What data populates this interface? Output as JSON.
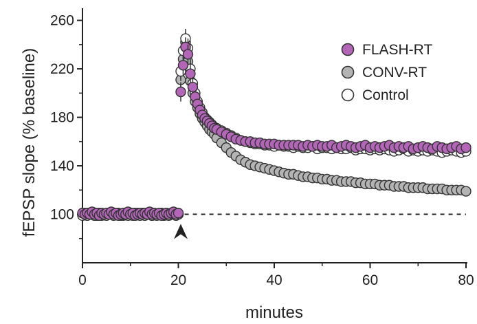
{
  "chart_data": {
    "type": "scatter",
    "title": "",
    "xlabel": "minutes",
    "ylabel": "fEPSP slope (% baseline)",
    "xlim": [
      0,
      80
    ],
    "ylim": [
      60,
      270
    ],
    "xticks": [
      0,
      20,
      40,
      60,
      80
    ],
    "yticks": [
      100,
      140,
      180,
      220,
      260
    ],
    "grid": false,
    "legend_position": "top-right",
    "baseline_ref": 100,
    "stimulus_marker_x": 20.5,
    "series": [
      {
        "name": "FLASH-RT",
        "color": "#b365b8",
        "points": [
          [
            0,
            101
          ],
          [
            0.5,
            100
          ],
          [
            1,
            101
          ],
          [
            1.5,
            100
          ],
          [
            2,
            102
          ],
          [
            2.5,
            100
          ],
          [
            3,
            101
          ],
          [
            3.5,
            99
          ],
          [
            4,
            101
          ],
          [
            4.5,
            100
          ],
          [
            5,
            101
          ],
          [
            5.5,
            100
          ],
          [
            6,
            102
          ],
          [
            6.5,
            100
          ],
          [
            7,
            101
          ],
          [
            7.5,
            99
          ],
          [
            8,
            100
          ],
          [
            8.5,
            101
          ],
          [
            9,
            100
          ],
          [
            9.5,
            102
          ],
          [
            10,
            100
          ],
          [
            10.5,
            101
          ],
          [
            11,
            99
          ],
          [
            11.5,
            100
          ],
          [
            12,
            101
          ],
          [
            12.5,
            100
          ],
          [
            13,
            101
          ],
          [
            13.5,
            100
          ],
          [
            14,
            102
          ],
          [
            14.5,
            100
          ],
          [
            15,
            101
          ],
          [
            15.5,
            100
          ],
          [
            16,
            101
          ],
          [
            16.5,
            99
          ],
          [
            17,
            100
          ],
          [
            17.5,
            101
          ],
          [
            18,
            100
          ],
          [
            18.5,
            101
          ],
          [
            19,
            102
          ],
          [
            19.5,
            100
          ],
          [
            20,
            101
          ],
          [
            20.5,
            201
          ],
          [
            21,
            223
          ],
          [
            21.5,
            238
          ],
          [
            22,
            232
          ],
          [
            22.5,
            216
          ],
          [
            23,
            205
          ],
          [
            23.5,
            197
          ],
          [
            24,
            191
          ],
          [
            24.5,
            186
          ],
          [
            25,
            182
          ],
          [
            25.5,
            179
          ],
          [
            26,
            177
          ],
          [
            26.5,
            175
          ],
          [
            27,
            173
          ],
          [
            27.5,
            171
          ],
          [
            28,
            170
          ],
          [
            29,
            168
          ],
          [
            30,
            166
          ],
          [
            31,
            164
          ],
          [
            32,
            162
          ],
          [
            33,
            161
          ],
          [
            34,
            160
          ],
          [
            35,
            160
          ],
          [
            36,
            159
          ],
          [
            37,
            159
          ],
          [
            38,
            158
          ],
          [
            39,
            158
          ],
          [
            40,
            158
          ],
          [
            41,
            157
          ],
          [
            42,
            157
          ],
          [
            43,
            157
          ],
          [
            44,
            157
          ],
          [
            45,
            157
          ],
          [
            46,
            156
          ],
          [
            47,
            157
          ],
          [
            48,
            156
          ],
          [
            49,
            157
          ],
          [
            50,
            156
          ],
          [
            51,
            156
          ],
          [
            52,
            157
          ],
          [
            53,
            155
          ],
          [
            54,
            156
          ],
          [
            55,
            157
          ],
          [
            56,
            156
          ],
          [
            57,
            155
          ],
          [
            58,
            156
          ],
          [
            59,
            157
          ],
          [
            60,
            155
          ],
          [
            61,
            156
          ],
          [
            62,
            155
          ],
          [
            63,
            156
          ],
          [
            64,
            157
          ],
          [
            65,
            155
          ],
          [
            66,
            156
          ],
          [
            67,
            155
          ],
          [
            68,
            156
          ],
          [
            69,
            154
          ],
          [
            70,
            155
          ],
          [
            71,
            156
          ],
          [
            72,
            155
          ],
          [
            73,
            154
          ],
          [
            74,
            156
          ],
          [
            75,
            155
          ],
          [
            76,
            154
          ],
          [
            77,
            155
          ],
          [
            78,
            156
          ],
          [
            79,
            154
          ],
          [
            80,
            155
          ]
        ]
      },
      {
        "name": "CONV-RT",
        "color": "#b4b4b4",
        "points": [
          [
            0,
            100
          ],
          [
            0.5,
            101
          ],
          [
            1,
            100
          ],
          [
            1.5,
            101
          ],
          [
            2,
            100
          ],
          [
            2.5,
            101
          ],
          [
            3,
            99
          ],
          [
            3.5,
            100
          ],
          [
            4,
            101
          ],
          [
            4.5,
            100
          ],
          [
            5,
            100
          ],
          [
            5.5,
            101
          ],
          [
            6,
            100
          ],
          [
            6.5,
            101
          ],
          [
            7,
            100
          ],
          [
            7.5,
            101
          ],
          [
            8,
            100
          ],
          [
            8.5,
            99
          ],
          [
            9,
            101
          ],
          [
            9.5,
            100
          ],
          [
            10,
            101
          ],
          [
            10.5,
            100
          ],
          [
            11,
            101
          ],
          [
            11.5,
            100
          ],
          [
            12,
            100
          ],
          [
            12.5,
            101
          ],
          [
            13,
            100
          ],
          [
            13.5,
            101
          ],
          [
            14,
            100
          ],
          [
            14.5,
            99
          ],
          [
            15,
            101
          ],
          [
            15.5,
            100
          ],
          [
            16,
            100
          ],
          [
            16.5,
            101
          ],
          [
            17,
            100
          ],
          [
            17.5,
            101
          ],
          [
            18,
            100
          ],
          [
            18.5,
            101
          ],
          [
            19,
            100
          ],
          [
            19.5,
            101
          ],
          [
            20,
            100
          ],
          [
            20.5,
            211
          ],
          [
            21,
            228
          ],
          [
            21.5,
            242
          ],
          [
            22,
            226
          ],
          [
            22.5,
            210
          ],
          [
            23,
            200
          ],
          [
            23.5,
            193
          ],
          [
            24,
            188
          ],
          [
            24.5,
            183
          ],
          [
            25,
            179
          ],
          [
            25.5,
            176
          ],
          [
            26,
            173
          ],
          [
            26.5,
            170
          ],
          [
            27,
            168
          ],
          [
            27.5,
            166
          ],
          [
            28,
            163
          ],
          [
            29,
            159
          ],
          [
            30,
            155
          ],
          [
            31,
            151
          ],
          [
            32,
            148
          ],
          [
            33,
            145
          ],
          [
            34,
            143
          ],
          [
            35,
            141
          ],
          [
            36,
            140
          ],
          [
            37,
            139
          ],
          [
            38,
            138
          ],
          [
            39,
            137
          ],
          [
            40,
            136
          ],
          [
            41,
            135
          ],
          [
            42,
            134
          ],
          [
            43,
            133
          ],
          [
            44,
            133
          ],
          [
            45,
            132
          ],
          [
            46,
            131
          ],
          [
            47,
            131
          ],
          [
            48,
            130
          ],
          [
            49,
            130
          ],
          [
            50,
            129
          ],
          [
            51,
            129
          ],
          [
            52,
            128
          ],
          [
            53,
            128
          ],
          [
            54,
            127
          ],
          [
            55,
            127
          ],
          [
            56,
            127
          ],
          [
            57,
            126
          ],
          [
            58,
            126
          ],
          [
            59,
            125
          ],
          [
            60,
            125
          ],
          [
            61,
            125
          ],
          [
            62,
            124
          ],
          [
            63,
            124
          ],
          [
            64,
            124
          ],
          [
            65,
            123
          ],
          [
            66,
            123
          ],
          [
            67,
            123
          ],
          [
            68,
            122
          ],
          [
            69,
            122
          ],
          [
            70,
            122
          ],
          [
            71,
            122
          ],
          [
            72,
            121
          ],
          [
            73,
            121
          ],
          [
            74,
            121
          ],
          [
            75,
            121
          ],
          [
            76,
            120
          ],
          [
            77,
            120
          ],
          [
            78,
            120
          ],
          [
            79,
            120
          ],
          [
            80,
            119
          ]
        ]
      },
      {
        "name": "Control",
        "color": "#ffffff",
        "points": [
          [
            0,
            99
          ],
          [
            0.5,
            100
          ],
          [
            1,
            99
          ],
          [
            1.5,
            100
          ],
          [
            2,
            101
          ],
          [
            2.5,
            99
          ],
          [
            3,
            100
          ],
          [
            3.5,
            101
          ],
          [
            4,
            99
          ],
          [
            4.5,
            100
          ],
          [
            5,
            99
          ],
          [
            5.5,
            100
          ],
          [
            6,
            101
          ],
          [
            6.5,
            99
          ],
          [
            7,
            100
          ],
          [
            7.5,
            100
          ],
          [
            8,
            99
          ],
          [
            8.5,
            100
          ],
          [
            9,
            101
          ],
          [
            9.5,
            99
          ],
          [
            10,
            100
          ],
          [
            10.5,
            99
          ],
          [
            11,
            100
          ],
          [
            11.5,
            101
          ],
          [
            12,
            99
          ],
          [
            12.5,
            100
          ],
          [
            13,
            99
          ],
          [
            13.5,
            100
          ],
          [
            14,
            101
          ],
          [
            14.5,
            99
          ],
          [
            15,
            100
          ],
          [
            15.5,
            99
          ],
          [
            16,
            100
          ],
          [
            16.5,
            101
          ],
          [
            17,
            99
          ],
          [
            17.5,
            100
          ],
          [
            18,
            99
          ],
          [
            18.5,
            100
          ],
          [
            19,
            101
          ],
          [
            19.5,
            99
          ],
          [
            20,
            100
          ],
          [
            20.5,
            218
          ],
          [
            21,
            235
          ],
          [
            21.5,
            245
          ],
          [
            22,
            237
          ],
          [
            22.5,
            220
          ],
          [
            23,
            208
          ],
          [
            23.5,
            200
          ],
          [
            24,
            193
          ],
          [
            24.5,
            188
          ],
          [
            25,
            184
          ],
          [
            25.5,
            180
          ],
          [
            26,
            178
          ],
          [
            26.5,
            176
          ],
          [
            27,
            174
          ],
          [
            27.5,
            172
          ],
          [
            28,
            171
          ],
          [
            29,
            169
          ],
          [
            30,
            167
          ],
          [
            31,
            165
          ],
          [
            32,
            163
          ],
          [
            33,
            161
          ],
          [
            34,
            160
          ],
          [
            35,
            159
          ],
          [
            36,
            158
          ],
          [
            37,
            158
          ],
          [
            38,
            157
          ],
          [
            39,
            157
          ],
          [
            40,
            156
          ],
          [
            41,
            157
          ],
          [
            42,
            156
          ],
          [
            43,
            156
          ],
          [
            44,
            155
          ],
          [
            45,
            156
          ],
          [
            46,
            155
          ],
          [
            47,
            155
          ],
          [
            48,
            156
          ],
          [
            49,
            154
          ],
          [
            50,
            155
          ],
          [
            51,
            155
          ],
          [
            52,
            154
          ],
          [
            53,
            155
          ],
          [
            54,
            154
          ],
          [
            55,
            154
          ],
          [
            56,
            155
          ],
          [
            57,
            153
          ],
          [
            58,
            154
          ],
          [
            59,
            154
          ],
          [
            60,
            153
          ],
          [
            61,
            154
          ],
          [
            62,
            153
          ],
          [
            63,
            154
          ],
          [
            64,
            153
          ],
          [
            65,
            152
          ],
          [
            66,
            153
          ],
          [
            67,
            154
          ],
          [
            68,
            152
          ],
          [
            69,
            153
          ],
          [
            70,
            152
          ],
          [
            71,
            153
          ],
          [
            72,
            152
          ],
          [
            73,
            153
          ],
          [
            74,
            152
          ],
          [
            75,
            151
          ],
          [
            76,
            152
          ],
          [
            77,
            153
          ],
          [
            78,
            152
          ],
          [
            79,
            151
          ],
          [
            80,
            152
          ]
        ]
      }
    ]
  }
}
